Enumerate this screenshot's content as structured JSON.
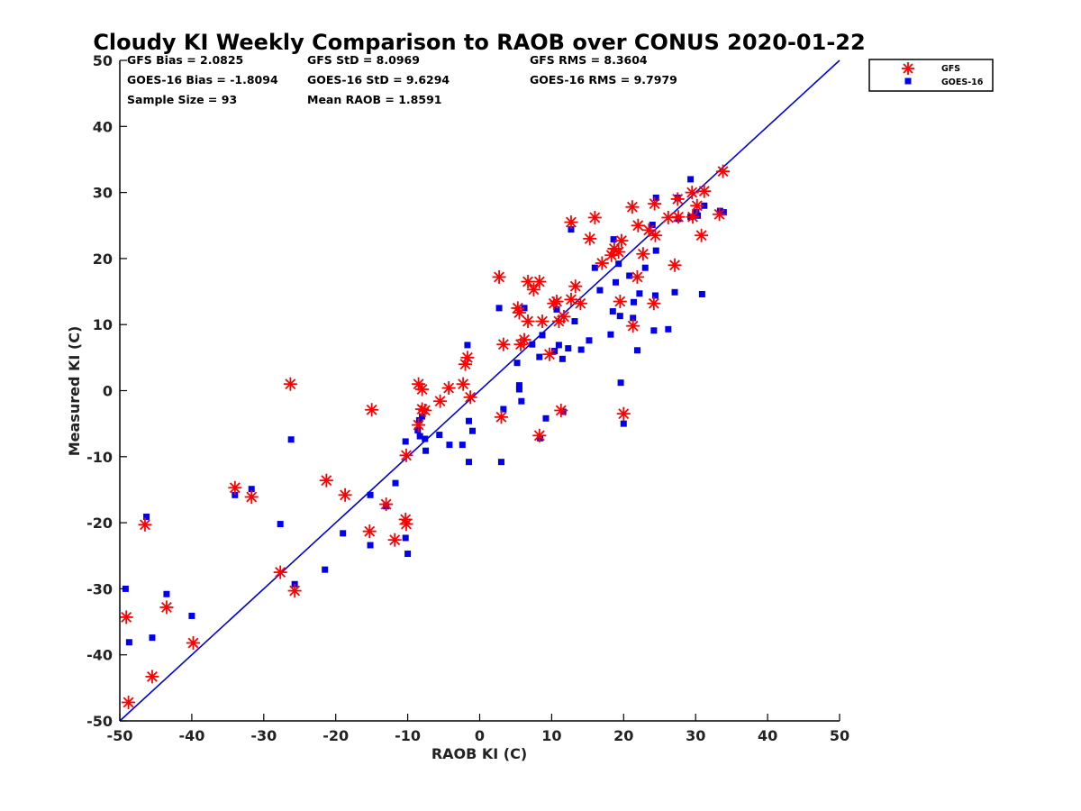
{
  "chart_data": {
    "type": "scatter",
    "title": "Cloudy KI Weekly Comparison to RAOB over CONUS 2020-01-22",
    "xlabel": "RAOB KI (C)",
    "ylabel": "Measured KI (C)",
    "xlim": [
      -50,
      50
    ],
    "ylim": [
      -50,
      50
    ],
    "xticks": [
      "-50",
      "-40",
      "-30",
      "-20",
      "-10",
      "0",
      "10",
      "20",
      "30",
      "40",
      "50"
    ],
    "yticks": [
      "-50",
      "-40",
      "-30",
      "-20",
      "-10",
      "0",
      "10",
      "20",
      "30",
      "40",
      "50"
    ],
    "grid": false,
    "legend_position": "top-right, outside plot area",
    "stats": [
      [
        "GFS Bias = 2.0825",
        "GFS StD = 8.0969",
        "GFS RMS = 8.3604"
      ],
      [
        "GOES-16 Bias = -1.8094",
        "GOES-16 StD = 9.6294",
        "GOES-16 RMS = 9.7979"
      ],
      [
        "Sample Size = 93",
        "Mean RAOB = 1.8591",
        ""
      ]
    ],
    "reference_line": {
      "from": [
        -50,
        -50
      ],
      "to": [
        50,
        50
      ],
      "color": "#0000dd"
    },
    "series": [
      {
        "name": "GFS",
        "marker": "asterisk",
        "color": "#ff0000",
        "points": [
          [
            -48.8,
            -47.2
          ],
          [
            -49.1,
            -34.3
          ],
          [
            -45.5,
            -43.3
          ],
          [
            -43.5,
            -32.8
          ],
          [
            -39.8,
            -38.2
          ],
          [
            -46.5,
            -20.3
          ],
          [
            -34,
            -14.7
          ],
          [
            -31.7,
            -16.1
          ],
          [
            -27.7,
            -27.5
          ],
          [
            -25.7,
            -30.3
          ],
          [
            -26.3,
            1.0
          ],
          [
            -21.3,
            -13.6
          ],
          [
            -18.7,
            -15.8
          ],
          [
            -15.3,
            -21.3
          ],
          [
            -15,
            -2.9
          ],
          [
            -13,
            -17.2
          ],
          [
            -11.8,
            -22.6
          ],
          [
            -10.3,
            -19.5
          ],
          [
            -10.2,
            -20.2
          ],
          [
            -10.2,
            -9.8
          ],
          [
            -8.5,
            -5.2
          ],
          [
            -8.5,
            1.0
          ],
          [
            -8,
            0.2
          ],
          [
            -8,
            -2.8
          ],
          [
            -7.6,
            -3.0
          ],
          [
            -5.5,
            -1.6
          ],
          [
            -4.3,
            0.4
          ],
          [
            -2.3,
            1.0
          ],
          [
            -2,
            4.0
          ],
          [
            -1.7,
            5.0
          ],
          [
            -1.3,
            -1.0
          ],
          [
            2.7,
            17.2
          ],
          [
            3,
            -4.0
          ],
          [
            3.3,
            7.0
          ],
          [
            5.3,
            12.5
          ],
          [
            5.5,
            11.8
          ],
          [
            5.7,
            7.0
          ],
          [
            6.2,
            7.7
          ],
          [
            6.7,
            10.5
          ],
          [
            6.7,
            16.5
          ],
          [
            7.5,
            15.3
          ],
          [
            8.3,
            16.5
          ],
          [
            8.3,
            -6.8
          ],
          [
            8.7,
            10.5
          ],
          [
            9.7,
            5.5
          ],
          [
            10.3,
            13.2
          ],
          [
            10.7,
            13.5
          ],
          [
            11,
            10.5
          ],
          [
            11.3,
            -3.0
          ],
          [
            11.7,
            11.2
          ],
          [
            12.7,
            25.5
          ],
          [
            12.7,
            13.8
          ],
          [
            13.3,
            15.8
          ],
          [
            14,
            13.2
          ],
          [
            15.3,
            23.0
          ],
          [
            16,
            26.2
          ],
          [
            17,
            19.3
          ],
          [
            18.3,
            20.5
          ],
          [
            18.7,
            21.5
          ],
          [
            19.3,
            21.0
          ],
          [
            19.5,
            13.5
          ],
          [
            19.7,
            22.7
          ],
          [
            20,
            -3.5
          ],
          [
            21.3,
            9.8
          ],
          [
            21.2,
            27.8
          ],
          [
            21.9,
            17.2
          ],
          [
            22,
            25.0
          ],
          [
            22.7,
            20.7
          ],
          [
            23.5,
            24.3
          ],
          [
            24.2,
            13.2
          ],
          [
            24.3,
            28.3
          ],
          [
            24.4,
            23.5
          ],
          [
            26.2,
            26.2
          ],
          [
            27.1,
            19.0
          ],
          [
            27.5,
            29.0
          ],
          [
            27.6,
            26.3
          ],
          [
            29.5,
            30.0
          ],
          [
            29.6,
            26.3
          ],
          [
            30.2,
            28.0
          ],
          [
            30.8,
            23.5
          ],
          [
            31.2,
            30.2
          ],
          [
            33.3,
            26.7
          ],
          [
            33.8,
            33.2
          ]
        ]
      },
      {
        "name": "GOES-16",
        "marker": "square",
        "color": "#0000ee",
        "points": [
          [
            -49.2,
            -30.0
          ],
          [
            -48.7,
            -38.1
          ],
          [
            -46.3,
            -19.1
          ],
          [
            -45.5,
            -37.4
          ],
          [
            -43.5,
            -30.8
          ],
          [
            -40,
            -34.1
          ],
          [
            -34,
            -15.8
          ],
          [
            -31.7,
            -14.9
          ],
          [
            -27.7,
            -20.2
          ],
          [
            -26.2,
            -7.4
          ],
          [
            -25.7,
            -29.3
          ],
          [
            -21.5,
            -27.1
          ],
          [
            -19,
            -21.6
          ],
          [
            -15.2,
            -15.8
          ],
          [
            -15.2,
            -23.4
          ],
          [
            -13,
            -17.5
          ],
          [
            -11.7,
            -14.0
          ],
          [
            -10.3,
            -7.7
          ],
          [
            -10.3,
            -22.3
          ],
          [
            -10,
            -24.7
          ],
          [
            -8.6,
            -6.0
          ],
          [
            -8.4,
            -4.5
          ],
          [
            -8.3,
            -6.9
          ],
          [
            -8,
            -3.9
          ],
          [
            -7.6,
            -7.3
          ],
          [
            -7.5,
            -9.1
          ],
          [
            -5.6,
            -6.7
          ],
          [
            -4.2,
            -8.2
          ],
          [
            -2.4,
            -8.2
          ],
          [
            -1.7,
            6.9
          ],
          [
            -1.5,
            -10.8
          ],
          [
            -1.5,
            -4.6
          ],
          [
            -1,
            -6.1
          ],
          [
            2.7,
            12.5
          ],
          [
            3,
            -10.8
          ],
          [
            3.3,
            -2.8
          ],
          [
            5.2,
            4.2
          ],
          [
            5.5,
            0.8
          ],
          [
            5.5,
            0.2
          ],
          [
            5.8,
            -1.6
          ],
          [
            6.2,
            12.5
          ],
          [
            7.3,
            7.0
          ],
          [
            8.3,
            5.1
          ],
          [
            8.4,
            -7.2
          ],
          [
            8.7,
            8.4
          ],
          [
            9.2,
            -4.2
          ],
          [
            10.4,
            6.0
          ],
          [
            10.7,
            12.3
          ],
          [
            11,
            6.9
          ],
          [
            11.5,
            4.8
          ],
          [
            11.6,
            -3.2
          ],
          [
            12.3,
            6.4
          ],
          [
            12.7,
            24.4
          ],
          [
            13.2,
            10.5
          ],
          [
            14.1,
            6.2
          ],
          [
            15.2,
            7.6
          ],
          [
            16,
            18.6
          ],
          [
            16.7,
            15.2
          ],
          [
            18.2,
            8.5
          ],
          [
            18.5,
            12.0
          ],
          [
            18.6,
            22.9
          ],
          [
            18.9,
            16.4
          ],
          [
            19.3,
            19.2
          ],
          [
            19.5,
            11.3
          ],
          [
            19.6,
            1.2
          ],
          [
            20,
            -5.0
          ],
          [
            20.8,
            17.4
          ],
          [
            21.3,
            11.0
          ],
          [
            21.4,
            13.4
          ],
          [
            21.9,
            6.1
          ],
          [
            22.2,
            14.7
          ],
          [
            23,
            18.6
          ],
          [
            24,
            25.1
          ],
          [
            24.2,
            9.1
          ],
          [
            24.4,
            14.4
          ],
          [
            24.5,
            29.2
          ],
          [
            24.5,
            21.2
          ],
          [
            26.2,
            9.3
          ],
          [
            27.1,
            14.9
          ],
          [
            27.5,
            29.2
          ],
          [
            27.6,
            26.0
          ],
          [
            29.3,
            32.0
          ],
          [
            29.3,
            26.3
          ],
          [
            30.1,
            27.0
          ],
          [
            30.3,
            26.5
          ],
          [
            30.9,
            14.6
          ],
          [
            31.2,
            28.0
          ],
          [
            33.4,
            27.2
          ],
          [
            33.9,
            27.0
          ]
        ]
      }
    ]
  }
}
